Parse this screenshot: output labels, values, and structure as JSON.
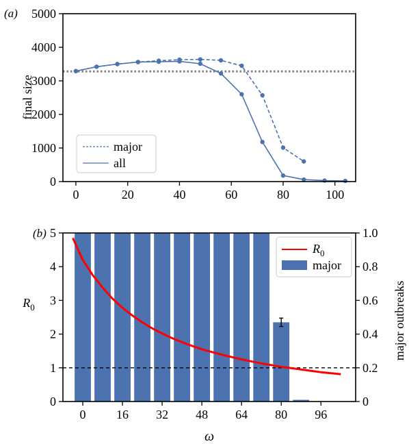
{
  "chart_data": [
    {
      "panel": "(a)",
      "type": "line",
      "xlabel": "",
      "ylabel": "final size",
      "xlim": [
        -5,
        108
      ],
      "ylim": [
        0,
        5000
      ],
      "xticks": [
        "0",
        "20",
        "40",
        "60",
        "80",
        "100"
      ],
      "yticks": [
        "0",
        "1000",
        "2000",
        "3000",
        "4000",
        "5000"
      ],
      "reference_line": {
        "y": 3280,
        "style": "dotted",
        "color": "#808080"
      },
      "legend": {
        "position": "bottom-left"
      },
      "series": [
        {
          "name": "major",
          "style": "dashed",
          "color": "#4c72b0",
          "x": [
            0,
            8,
            16,
            24,
            32,
            40,
            48,
            56,
            64,
            72,
            80,
            88
          ],
          "y": [
            3290,
            3420,
            3500,
            3560,
            3600,
            3630,
            3640,
            3610,
            3450,
            2570,
            1010,
            600
          ]
        },
        {
          "name": "all",
          "style": "solid",
          "color": "#4c72b0",
          "x": [
            0,
            8,
            16,
            24,
            32,
            40,
            48,
            56,
            64,
            72,
            80,
            88,
            96,
            104
          ],
          "y": [
            3290,
            3420,
            3500,
            3560,
            3570,
            3580,
            3510,
            3220,
            2600,
            1180,
            180,
            60,
            30,
            20
          ]
        }
      ]
    },
    {
      "panel": "(b)",
      "type": "bar",
      "xlabel": "ω",
      "ylabel": "R0",
      "ylabel_sub": "0",
      "y2label": "major outbreaks",
      "xlim": [
        -8,
        110
      ],
      "ylim": [
        0,
        5
      ],
      "y2lim": [
        0,
        1
      ],
      "xticks": [
        "0",
        "16",
        "32",
        "48",
        "64",
        "80",
        "96"
      ],
      "yticks": [
        "0",
        "1",
        "2",
        "3",
        "4",
        "5"
      ],
      "y2ticks": [
        "0",
        "0.2",
        "0.4",
        "0.6",
        "0.8",
        "1.0"
      ],
      "reference_line": {
        "y": 1,
        "style": "dashed",
        "color": "#000000"
      },
      "legend": {
        "position": "top-right"
      },
      "bars": {
        "name": "major",
        "color": "#4c72b0",
        "x": [
          0,
          8,
          16,
          24,
          32,
          40,
          48,
          56,
          64,
          72,
          80,
          88
        ],
        "values": [
          1.0,
          1.0,
          1.0,
          1.0,
          1.0,
          1.0,
          1.0,
          1.0,
          1.0,
          1.0,
          0.47,
          0.01
        ],
        "errors": [
          0,
          0,
          0,
          0,
          0,
          0,
          0,
          0,
          0,
          0,
          0.025,
          0
        ]
      },
      "line": {
        "name": "R",
        "name_sub": "0",
        "color": "#ff0000",
        "x": [
          -4,
          0,
          4,
          8,
          12,
          16,
          20,
          24,
          28,
          32,
          36,
          40,
          44,
          48,
          52,
          56,
          60,
          64,
          68,
          72,
          76,
          80,
          84,
          88,
          92,
          96,
          100,
          104
        ],
        "y": [
          4.85,
          4.2,
          3.75,
          3.38,
          3.05,
          2.78,
          2.55,
          2.35,
          2.17,
          2.02,
          1.88,
          1.76,
          1.65,
          1.55,
          1.47,
          1.39,
          1.32,
          1.25,
          1.19,
          1.13,
          1.08,
          1.03,
          0.99,
          0.95,
          0.91,
          0.87,
          0.84,
          0.81
        ]
      }
    }
  ]
}
